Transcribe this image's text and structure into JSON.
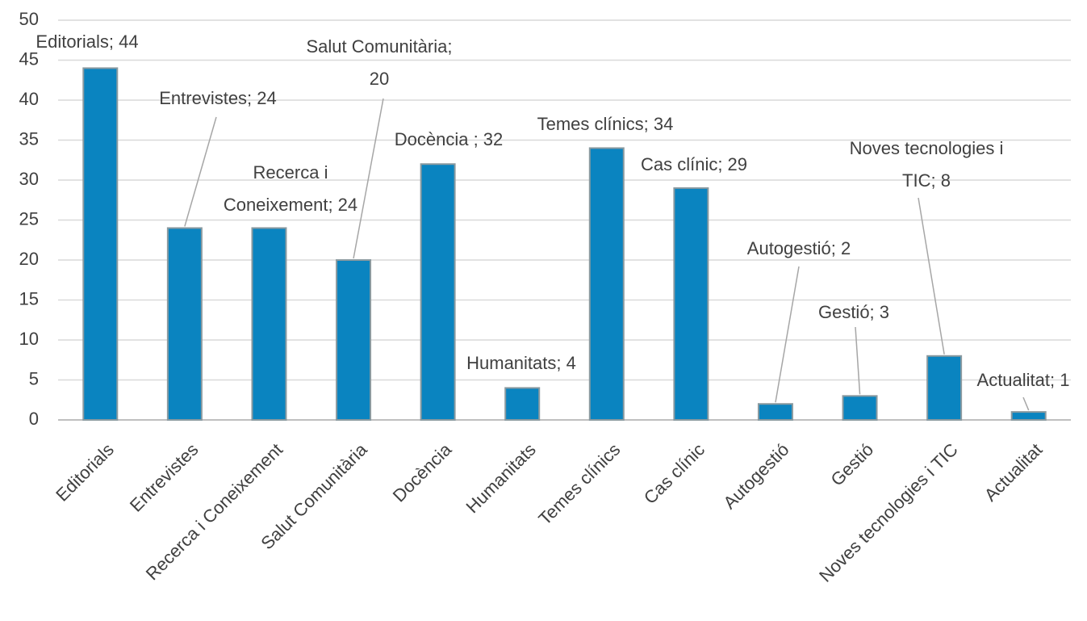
{
  "chart_data": {
    "type": "bar",
    "categories": [
      "Editorials",
      "Entrevistes",
      "Recerca i Coneixement",
      "Salut Comunitària",
      "Docència",
      "Humanitats",
      "Temes clínics",
      "Cas clínic",
      "Autogestió",
      "Gestió",
      "Noves tecnologies i TIC",
      "Actualitat"
    ],
    "values": [
      44,
      24,
      24,
      20,
      32,
      4,
      34,
      29,
      2,
      3,
      8,
      1
    ],
    "value_labels": [
      "Editorials; 44",
      "Entrevistes; 24",
      "Recerca i Coneixement; 24",
      "Salut Comunitària; 20",
      "Docència ; 32",
      "Humanitats; 4",
      "Temes clínics; 34",
      "Cas clínic; 29",
      "Autogestió; 2",
      "Gestió; 3",
      "Noves tecnologies i TIC; 8",
      "Actualitat; 1"
    ],
    "color": "#0a84c0",
    "ylim": [
      0,
      50
    ],
    "yticks": [
      0,
      5,
      10,
      15,
      20,
      25,
      30,
      35,
      40,
      45,
      50
    ],
    "grid": true
  }
}
